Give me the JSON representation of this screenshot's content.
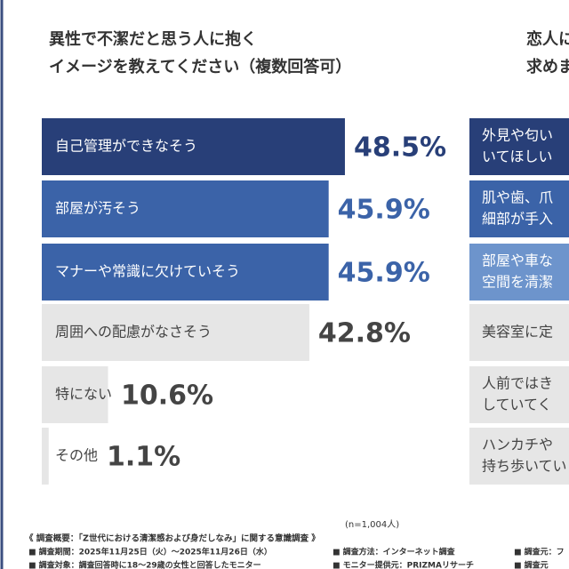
{
  "chart_data": [
    {
      "type": "bar",
      "title": [
        "異性で不潔だと思う人に抱く",
        "イメージを教えてください（複数回答可）"
      ],
      "categories": [
        "自己管理ができなそう",
        "部屋が汚そう",
        "マナーや常識に欠けていそう",
        "周囲への配慮がなさそう",
        "特にない",
        "その他"
      ],
      "values": [
        48.5,
        45.9,
        45.9,
        42.8,
        10.6,
        1.1
      ],
      "value_labels": [
        "48.5%",
        "45.9%",
        "45.9%",
        "42.8%",
        "10.6%",
        "1.1%"
      ],
      "colors": [
        "#283f78",
        "#3b63a8",
        "#3b63a8",
        "#e6e6e6",
        "#e6e6e6",
        "#e6e6e6"
      ],
      "note": "(n=1,004人)"
    },
    {
      "type": "bar",
      "title": [
        "恋人に",
        "求めま"
      ],
      "categories": [
        [
          "外見や匂い",
          "いてほしい"
        ],
        [
          "肌や歯、爪",
          "細部が手入"
        ],
        [
          "部屋や車な",
          "空間を清潔"
        ],
        [
          "美容室に定"
        ],
        [
          "人前ではき",
          "していてく"
        ],
        [
          "ハンカチや",
          "持ち歩いてい"
        ]
      ],
      "colors": [
        "#283f78",
        "#3b63a8",
        "#6d94cc",
        "#e6e6e6",
        "#e6e6e6",
        "#e6e6e6"
      ]
    }
  ],
  "footer": {
    "heading": "《 調査概要：「Z世代における清潔感および身だしなみ」に関する意識調査 》",
    "rows": [
      [
        "■ 調査期間：2025年11月25日（火）～2025年11月26日（水）",
        "■ 調査方法：インターネット調査",
        "■ 調査元：フ"
      ],
      [
        "■ 調査対象：調査回答時に18～29歳の女性と回答したモニター",
        "■ モニター提供元：PRIZMAリサーチ",
        "■ 調査元"
      ]
    ]
  }
}
